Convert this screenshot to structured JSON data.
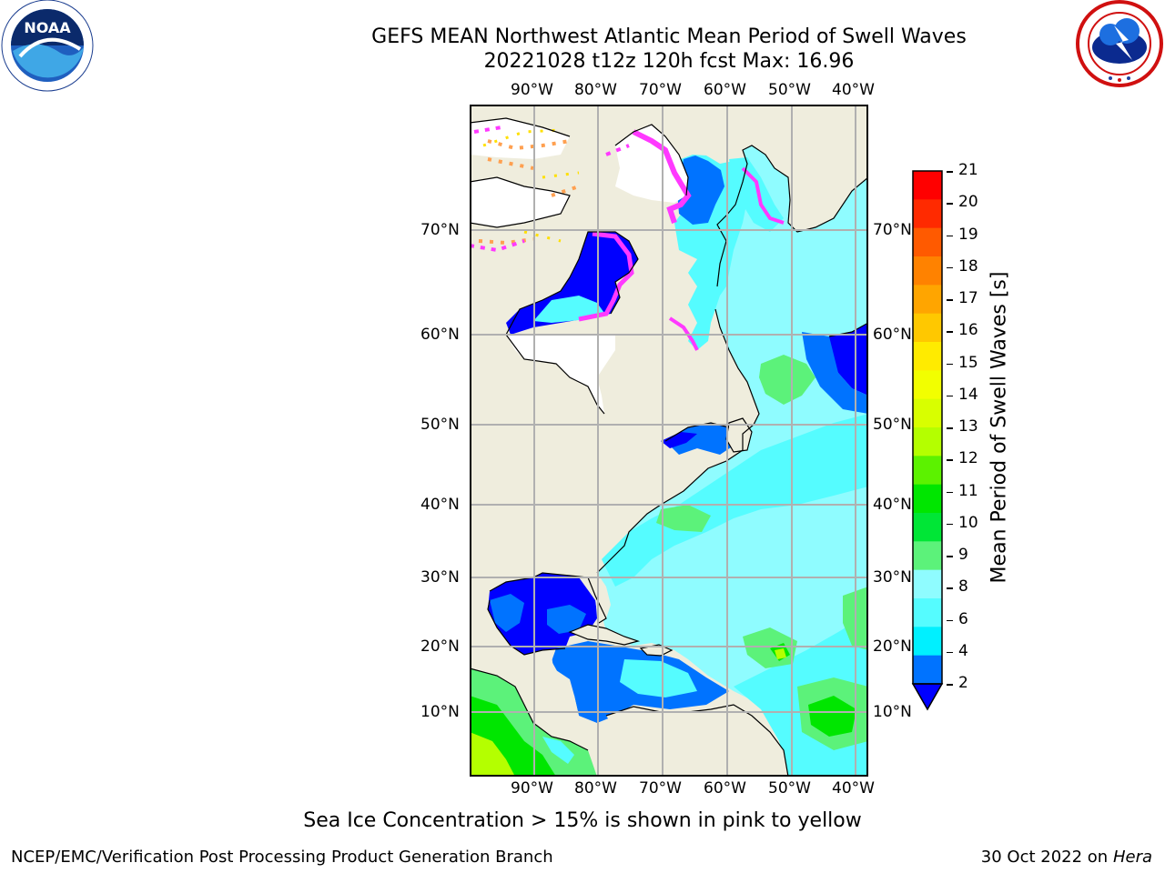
{
  "header": {
    "title_line1": "GEFS MEAN Northwest Atlantic Mean Period of Swell Waves",
    "title_line2": "20221028 t12z 120h fcst   Max: 16.96"
  },
  "logos": {
    "left": "noaa-logo",
    "left_text": "NOAA",
    "right": "national-weather-service-logo"
  },
  "map": {
    "lon_labels": [
      "90°W",
      "80°W",
      "70°W",
      "60°W",
      "50°W",
      "40°W"
    ],
    "lat_labels": [
      "70°N",
      "60°N",
      "50°N",
      "40°N",
      "30°N",
      "20°N",
      "10°N"
    ],
    "colors": {
      "land": "#efeddd",
      "ocean_base": "#8ffcff",
      "deep_blue": "#0000ff",
      "mid_blue": "#0073ff",
      "cyan": "#00f0ff",
      "light_cyan": "#55fcff",
      "green_light": "#5cf27a",
      "green": "#00e600",
      "yellow_green": "#b4ff00",
      "ice_pink": "#ff39ff",
      "ice_orange": "#ffa050",
      "ice_yellow": "#ffe000",
      "grid": "#b0b0b0"
    }
  },
  "colorbar": {
    "label": "Mean Period of Swell Waves [s]",
    "ticks": [
      "21",
      "20",
      "19",
      "18",
      "17",
      "16",
      "15",
      "14",
      "13",
      "12",
      "11",
      "10",
      "9",
      "8",
      "6",
      "4",
      "2"
    ],
    "colors": [
      "#ff0000",
      "#ff2a00",
      "#ff5a00",
      "#ff8200",
      "#ffa500",
      "#ffc800",
      "#ffeb00",
      "#f2ff00",
      "#d8ff00",
      "#b4ff00",
      "#5cf200",
      "#00e600",
      "#00e636",
      "#5cf27a",
      "#8ffcff",
      "#55fcff",
      "#00f0ff",
      "#0073ff"
    ],
    "under_color": "#0000ff"
  },
  "caption": "Sea Ice Concentration > 15% is shown in pink to yellow",
  "footer": {
    "left": "NCEP/EMC/Verification Post Processing Product Generation Branch",
    "right_prefix": "30 Oct 2022 on ",
    "right_host": "Hera"
  }
}
